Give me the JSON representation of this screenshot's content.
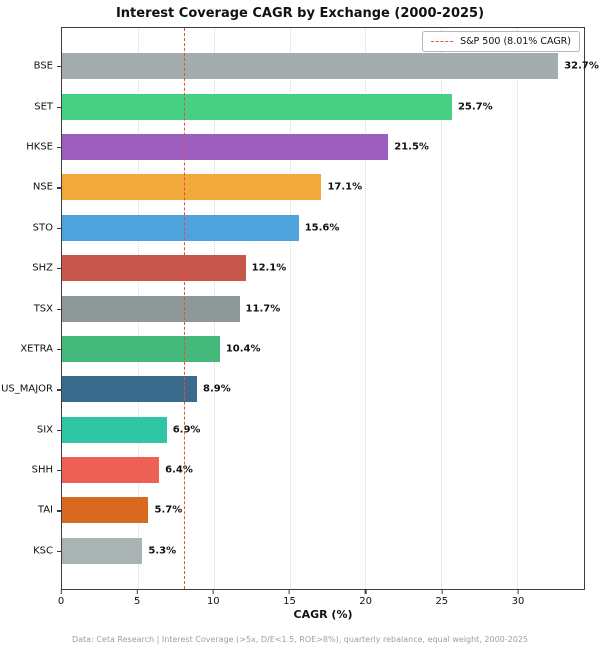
{
  "title": "Interest Coverage CAGR by Exchange (2000-2025)",
  "legend": {
    "label": "S&P 500 (8.01% CAGR)"
  },
  "xlabel": "CAGR (%)",
  "footer": "Data: Ceta Research | Interest Coverage (>5x, D/E<1.5, ROE>8%), quarterly rebalance, equal weight, 2000-2025",
  "colors": {
    "reference_line": "#e74c3c",
    "spine": "#3c3c3c",
    "gridline": "#d9d9d9"
  },
  "chart_data": {
    "type": "bar",
    "orientation": "horizontal",
    "title": "Interest Coverage CAGR by Exchange (2000-2025)",
    "xlabel": "CAGR (%)",
    "ylabel": "",
    "categories": [
      "BSE",
      "SET",
      "HKSE",
      "NSE",
      "STO",
      "SHZ",
      "TSX",
      "XETRA",
      "US_MAJOR",
      "SIX",
      "SHH",
      "TAI",
      "KSC"
    ],
    "values": [
      32.7,
      25.7,
      21.5,
      17.1,
      15.6,
      12.1,
      11.7,
      10.4,
      8.9,
      6.9,
      6.4,
      5.7,
      5.3
    ],
    "value_labels": [
      "32.7%",
      "25.7%",
      "21.5%",
      "17.1%",
      "15.6%",
      "12.1%",
      "11.7%",
      "10.4%",
      "8.9%",
      "6.9%",
      "6.4%",
      "5.7%",
      "5.3%"
    ],
    "bar_colors": [
      "#a3adad",
      "#47cf82",
      "#9c5fc0",
      "#f2a93b",
      "#4fa3dc",
      "#c8564c",
      "#8d9898",
      "#45b97c",
      "#3a6b8c",
      "#30c5a5",
      "#ed6056",
      "#d9691f",
      "#a9b3b3"
    ],
    "reference_line": {
      "value": 8.01,
      "label": "S&P 500 (8.01% CAGR)",
      "color": "#e74c3c",
      "style": "dashed"
    },
    "xlim": [
      0,
      34.4
    ],
    "xticks": [
      0,
      5,
      10,
      15,
      20,
      25,
      30
    ],
    "grid": "vertical-dotted-at-major-ticks",
    "legend_position": "upper-right"
  }
}
